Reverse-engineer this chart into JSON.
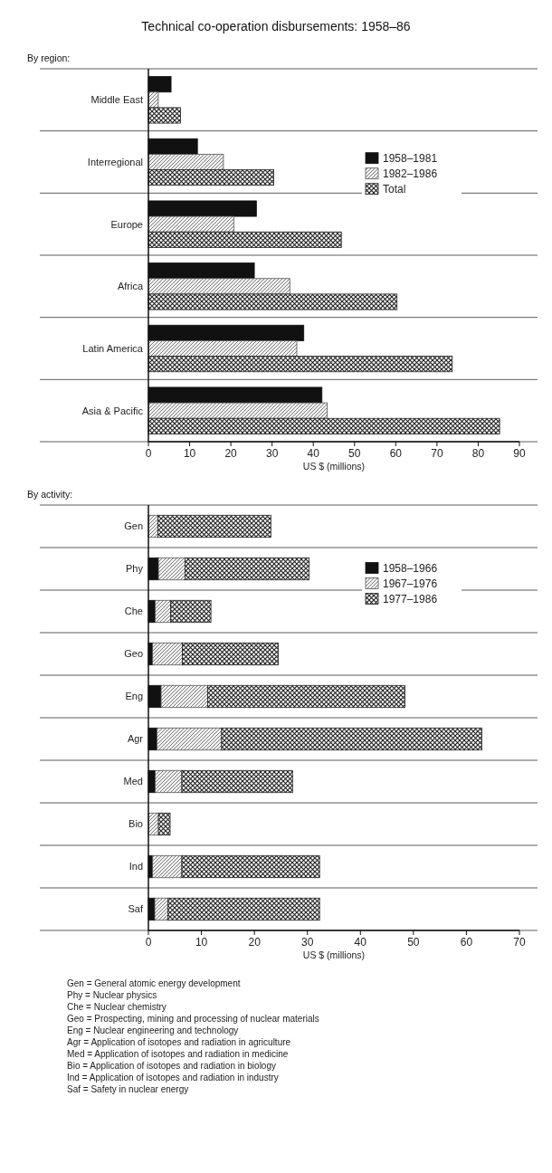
{
  "chart_data": [
    {
      "type": "bar",
      "orientation": "horizontal",
      "title": "Technical co-operation disbursements: 1958–86",
      "subtitle": "By region:",
      "xlabel": "US $ (millions)",
      "categories": [
        "Middle East",
        "Interregional",
        "Europe",
        "Africa",
        "Latin America",
        "Asia & Pacific"
      ],
      "series": [
        {
          "name": "1958–1981",
          "color": "#111111",
          "values": [
            5.5,
            11.9,
            26.2,
            25.7,
            37.7,
            42.1
          ]
        },
        {
          "name": "1982–1986",
          "color": "#555555",
          "values": [
            2.4,
            18.2,
            20.7,
            34.3,
            36.0,
            43.4
          ]
        },
        {
          "name": "Total",
          "color": "#222222",
          "values": [
            7.8,
            30.4,
            46.8,
            60.3,
            73.7,
            85.2
          ]
        }
      ],
      "xlim": [
        0,
        90
      ],
      "xticks": [
        0,
        10,
        20,
        30,
        40,
        50,
        60,
        70,
        80,
        90
      ],
      "legend": "top right"
    },
    {
      "type": "bar",
      "orientation": "horizontal",
      "stacked": true,
      "subtitle": "By activity:",
      "xlabel": "US $ (millions)",
      "categories": [
        "Gen",
        "Phy",
        "Che",
        "Geo",
        "Eng",
        "Agr",
        "Med",
        "Bio",
        "Ind",
        "Saf"
      ],
      "series": [
        {
          "name": "1958–1966",
          "color": "#111111",
          "values": [
            0,
            1.9,
            1.3,
            0.8,
            2.4,
            1.6,
            1.3,
            null,
            0.8,
            1.2
          ]
        },
        {
          "name": "1967–1976",
          "color": "#555555",
          "values": [
            1.8,
            5.0,
            2.9,
            5.6,
            8.8,
            12.2,
            5.0,
            1.9,
            5.5,
            2.5
          ]
        },
        {
          "name": "1977–1986",
          "color": "#222222",
          "values": [
            21.3,
            23.4,
            7.6,
            18.1,
            37.2,
            49.1,
            20.9,
            2.2,
            26.0,
            28.6
          ]
        }
      ],
      "xlim": [
        0,
        70
      ],
      "xticks": [
        0,
        10,
        20,
        30,
        40,
        50,
        60,
        70
      ],
      "legend": "top right",
      "annotations": [
        "Gen = General atomic energy development",
        "Phy = Nuclear physics",
        "Che = Nuclear chemistry",
        "Geo = Prospecting, mining and processing of nuclear materials",
        "Eng = Nuclear engineering and technology",
        "Agr = Application of isotopes and radiation in agriculture",
        "Med = Application of isotopes and radiation in medicine",
        "Bio = Application of isotopes and radiation in biology",
        "Ind = Application of isotopes and radiation in industry",
        "Saf = Safety in nuclear energy"
      ]
    }
  ]
}
